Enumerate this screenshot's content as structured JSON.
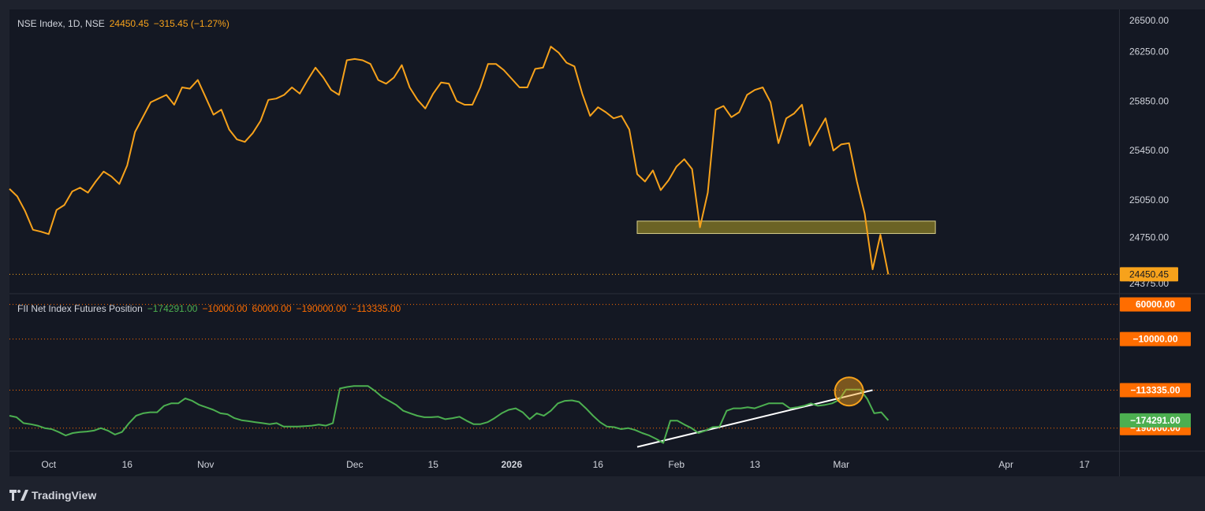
{
  "header": {
    "symbol": "NSE Index, 1D, NSE",
    "last": "24450.45",
    "change": "−315.45 (−1.27%)"
  },
  "indicator": {
    "name": "FII Net Index Futures Position",
    "values": [
      "−174291.00",
      "−10000.00",
      "60000.00",
      "−190000.00",
      "−113335.00"
    ],
    "value_colors": [
      "#4caf50",
      "#ff6d00",
      "#ff6d00",
      "#ff6d00",
      "#ff6d00"
    ]
  },
  "brand": {
    "name": "TradingView"
  },
  "colors": {
    "price_line": "#f7a21b",
    "indicator_line": "#4caf50",
    "level_line": "#ff6d00",
    "zone_fill": "#6b6325",
    "zone_stroke": "#d8cf8a",
    "trendline": "#ffffff",
    "highlight_circle": "#f7a21b"
  },
  "chart_data": [
    {
      "type": "line",
      "title": "NSE Index, 1D, NSE",
      "y_ticks": [
        26500,
        26250,
        25850,
        25450,
        25050,
        24750,
        24375
      ],
      "y_tick_labels": [
        "26500.00",
        "26250.00",
        "25850.00",
        "25450.00",
        "25050.00",
        "24750.00",
        "24375.00"
      ],
      "ylim": [
        24300,
        26590
      ],
      "last_value": 24450.45,
      "last_label": "24450.45",
      "x_labels": [
        "Oct",
        "16",
        "Nov",
        "Dec",
        "15",
        "2026",
        "16",
        "Feb",
        "13",
        "Mar",
        "Apr",
        "17"
      ],
      "x_label_index": [
        5,
        15,
        25,
        44,
        54,
        64,
        75,
        85,
        95,
        106,
        127,
        137
      ],
      "bars": 111,
      "support_zone": {
        "from_index": 80,
        "to_index": 118,
        "low": 24780,
        "high": 24880
      },
      "series": [
        {
          "values": [
            25140,
            25080,
            24960,
            24810,
            24795,
            24775,
            24970,
            25010,
            25120,
            25150,
            25110,
            25200,
            25280,
            25240,
            25180,
            25330,
            25600,
            25720,
            25840,
            25870,
            25900,
            25820,
            25960,
            25950,
            26020,
            25880,
            25740,
            25780,
            25620,
            25540,
            25520,
            25590,
            25690,
            25860,
            25870,
            25900,
            25960,
            25910,
            26020,
            26120,
            26040,
            25940,
            25900,
            26180,
            26190,
            26180,
            26150,
            26020,
            25990,
            26040,
            26140,
            25960,
            25860,
            25790,
            25910,
            26000,
            25990,
            25850,
            25820,
            25820,
            25960,
            26150,
            26150,
            26100,
            26030,
            25960,
            25960,
            26110,
            26120,
            26290,
            26240,
            26160,
            26130,
            25910,
            25730,
            25800,
            25760,
            25710,
            25730,
            25620,
            25260,
            25200,
            25290,
            25130,
            25210,
            25320,
            25380,
            25300,
            24830,
            25110,
            25780,
            25810,
            25720,
            25760,
            25900,
            25940,
            25960,
            25840,
            25510,
            25710,
            25750,
            25820,
            25490,
            25600,
            25710,
            25450,
            25500,
            25510,
            25200,
            24940,
            24490,
            24770,
            24450
          ]
        }
      ]
    },
    {
      "type": "line",
      "title": "FII Net Index Futures Position",
      "ylim": [
        -235000,
        80000
      ],
      "levels": [
        {
          "value": 60000,
          "label": "60000.00",
          "color": "#ff6d00"
        },
        {
          "value": -10000,
          "label": "−10000.00",
          "color": "#ff6d00"
        },
        {
          "value": -113335,
          "label": "−113335.00",
          "color": "#ff6d00"
        },
        {
          "value": -190000,
          "label": "−190000.00",
          "color": "#ff6d00"
        }
      ],
      "last_value": -174291,
      "last_label": "−174291.00",
      "trendline": {
        "from": [
          80,
          -228000
        ],
        "to": [
          110,
          -113335
        ]
      },
      "circle_at": {
        "index": 107,
        "value": -116000
      },
      "series": [
        {
          "values": [
            -165000,
            -168000,
            -180000,
            -182000,
            -185000,
            -190000,
            -192000,
            -198000,
            -205000,
            -200000,
            -198000,
            -197000,
            -195000,
            -190000,
            -195000,
            -203000,
            -198000,
            -180000,
            -165000,
            -160000,
            -158000,
            -158000,
            -145000,
            -140000,
            -140000,
            -130000,
            -135000,
            -143000,
            -148000,
            -153000,
            -160000,
            -162000,
            -170000,
            -174000,
            -176000,
            -178000,
            -180000,
            -182000,
            -180000,
            -187000,
            -187000,
            -187000,
            -186000,
            -185000,
            -183000,
            -185000,
            -180000,
            -110000,
            -107000,
            -105000,
            -105000,
            -105000,
            -115000,
            -127000,
            -135000,
            -143000,
            -155000,
            -160000,
            -165000,
            -168000,
            -168000,
            -167000,
            -172000,
            -170000,
            -167000,
            -175000,
            -182000,
            -182000,
            -178000,
            -170000,
            -160000,
            -153000,
            -150000,
            -158000,
            -172000,
            -160000,
            -165000,
            -155000,
            -140000,
            -135000,
            -134000,
            -137000,
            -150000,
            -165000,
            -178000,
            -187000,
            -188000,
            -192000,
            -190000,
            -194000,
            -200000,
            -205000,
            -212000,
            -220000,
            -175000,
            -175000,
            -183000,
            -190000,
            -200000,
            -195000,
            -188000,
            -187000,
            -155000,
            -150000,
            -150000,
            -148000,
            -150000,
            -145000,
            -140000,
            -140000,
            -140000,
            -150000,
            -148000,
            -145000,
            -140000,
            -145000,
            -143000,
            -140000,
            -133000,
            -112000,
            -112000,
            -112000,
            -131000,
            -160000,
            -158000,
            -174291
          ]
        }
      ]
    }
  ]
}
